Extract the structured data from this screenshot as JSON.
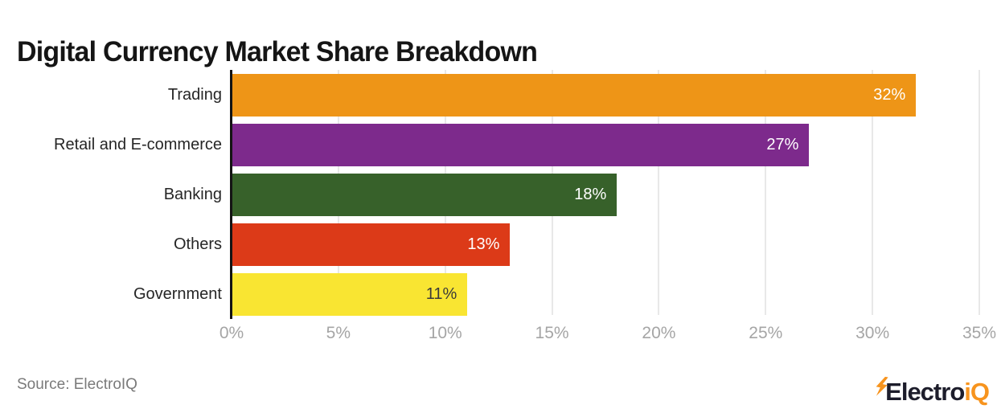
{
  "title": "Digital Currency Market Share Breakdown",
  "source_note": "Source: ElectroIQ",
  "logo": {
    "part1": "Electro",
    "part2": "iQ",
    "bolt_color": "#f7941e",
    "text_dark_color": "#1d1d2b",
    "text_accent_color": "#f7941e"
  },
  "chart_data": {
    "type": "bar",
    "orientation": "horizontal",
    "title": "Digital Currency Market Share Breakdown",
    "categories": [
      "Trading",
      "Retail and E-commerce",
      "Banking",
      "Others",
      "Government"
    ],
    "values": [
      32,
      27,
      18,
      13,
      11
    ],
    "value_labels": [
      "32%",
      "27%",
      "18%",
      "13%",
      "11%"
    ],
    "bar_colors": [
      "#ee9517",
      "#7d2a8c",
      "#37612a",
      "#dc3a18",
      "#f9e532"
    ],
    "value_label_colors": [
      "#ffffff",
      "#ffffff",
      "#ffffff",
      "#ffffff",
      "#3a3a3a"
    ],
    "xlabel": "",
    "ylabel": "",
    "xlim": [
      0,
      35
    ],
    "x_tick_step": 5,
    "x_tick_labels": [
      "0%",
      "5%",
      "10%",
      "15%",
      "20%",
      "25%",
      "30%",
      "35%"
    ],
    "grid": true,
    "legend": false,
    "grid_color": "#e8e8e8",
    "axis_line_color": "#141414",
    "tick_label_color": "#a5a5a5"
  }
}
